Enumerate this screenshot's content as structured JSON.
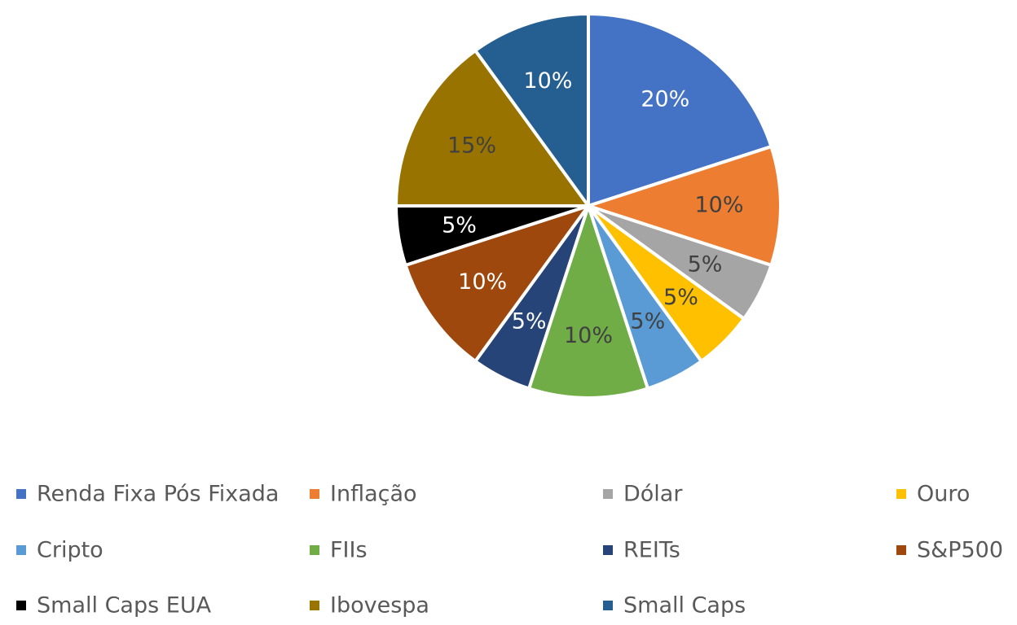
{
  "chart_data": {
    "type": "pie",
    "categories": [
      "Renda Fixa Pós Fixada",
      "Inflação",
      "Dólar",
      "Ouro",
      "Cripto",
      "FIIs",
      "REITs",
      "S&P500",
      "Small Caps EUA",
      "Ibovespa",
      "Small Caps"
    ],
    "values": [
      20,
      10,
      5,
      5,
      5,
      10,
      5,
      10,
      5,
      15,
      10
    ],
    "value_labels": [
      "20%",
      "10%",
      "5%",
      "5%",
      "5%",
      "10%",
      "5%",
      "10%",
      "5%",
      "15%",
      "10%"
    ],
    "colors": [
      "#4472c4",
      "#ed7d31",
      "#a5a5a5",
      "#ffc000",
      "#5b9bd5",
      "#70ad47",
      "#264478",
      "#9e480e",
      "#000000",
      "#997300",
      "#255e91"
    ],
    "legend": "bottom"
  }
}
